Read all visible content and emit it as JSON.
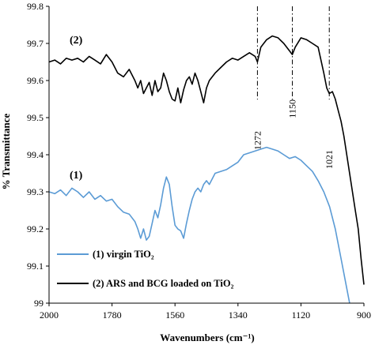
{
  "chart_data": {
    "type": "line",
    "xlabel": "Wavenumbers (cm⁻¹)",
    "ylabel": "% Transmittance",
    "xlim": [
      2000,
      900
    ],
    "ylim": [
      99,
      99.8
    ],
    "x_reversed": true,
    "xticks": [
      2000,
      1780,
      1560,
      1340,
      1120,
      900
    ],
    "xtick_labels": [
      "2000",
      "1780",
      "1560",
      "1340",
      "1120",
      "900"
    ],
    "yticks": [
      99,
      99.1,
      99.2,
      99.3,
      99.4,
      99.5,
      99.6,
      99.7,
      99.8
    ],
    "ytick_labels": [
      "99",
      "99.1",
      "99.2",
      "99.3",
      "99.4",
      "99.5",
      "99.6",
      "99.7",
      "99.8"
    ],
    "grid": false,
    "legend_position": "bottom-left",
    "series": [
      {
        "name": "(1) virgin TiO₂",
        "tag": "(1)",
        "color": "#5b9bd5",
        "x": [
          2000,
          1980,
          1960,
          1940,
          1920,
          1900,
          1880,
          1860,
          1840,
          1820,
          1800,
          1780,
          1760,
          1740,
          1720,
          1700,
          1690,
          1680,
          1670,
          1660,
          1650,
          1640,
          1630,
          1620,
          1610,
          1600,
          1590,
          1580,
          1570,
          1560,
          1550,
          1540,
          1530,
          1520,
          1510,
          1500,
          1490,
          1480,
          1470,
          1460,
          1450,
          1440,
          1420,
          1400,
          1380,
          1360,
          1340,
          1320,
          1300,
          1280,
          1260,
          1240,
          1220,
          1200,
          1180,
          1160,
          1140,
          1120,
          1100,
          1080,
          1060,
          1040,
          1020,
          1000,
          980,
          960,
          950
        ],
        "y": [
          99.3,
          99.295,
          99.305,
          99.29,
          99.31,
          99.3,
          99.285,
          99.3,
          99.28,
          99.29,
          99.275,
          99.28,
          99.26,
          99.245,
          99.24,
          99.22,
          99.2,
          99.175,
          99.2,
          99.17,
          99.18,
          99.215,
          99.25,
          99.23,
          99.265,
          99.31,
          99.34,
          99.32,
          99.26,
          99.21,
          99.2,
          99.195,
          99.175,
          99.215,
          99.25,
          99.28,
          99.3,
          99.31,
          99.3,
          99.32,
          99.33,
          99.32,
          99.35,
          99.355,
          99.36,
          99.37,
          99.38,
          99.4,
          99.405,
          99.41,
          99.415,
          99.42,
          99.415,
          99.41,
          99.4,
          99.39,
          99.395,
          99.385,
          99.37,
          99.355,
          99.33,
          99.3,
          99.26,
          99.2,
          99.12,
          99.04,
          99.0
        ]
      },
      {
        "name": "(2) ARS and BCG loaded on TiO₂",
        "tag": "(2)",
        "color": "#000000",
        "x": [
          2000,
          1980,
          1960,
          1940,
          1920,
          1900,
          1880,
          1860,
          1840,
          1820,
          1800,
          1780,
          1760,
          1740,
          1720,
          1700,
          1690,
          1680,
          1670,
          1660,
          1650,
          1640,
          1630,
          1620,
          1610,
          1600,
          1590,
          1580,
          1570,
          1560,
          1550,
          1540,
          1530,
          1520,
          1510,
          1500,
          1490,
          1480,
          1470,
          1460,
          1450,
          1440,
          1420,
          1400,
          1380,
          1360,
          1340,
          1320,
          1300,
          1280,
          1272,
          1260,
          1240,
          1220,
          1200,
          1180,
          1160,
          1150,
          1140,
          1120,
          1100,
          1080,
          1060,
          1040,
          1030,
          1021,
          1010,
          1000,
          990,
          980,
          970,
          960,
          950,
          940,
          930,
          920,
          910,
          900
        ],
        "y": [
          99.65,
          99.655,
          99.645,
          99.66,
          99.655,
          99.66,
          99.65,
          99.665,
          99.655,
          99.645,
          99.67,
          99.65,
          99.62,
          99.61,
          99.63,
          99.6,
          99.58,
          99.6,
          99.565,
          99.58,
          99.595,
          99.56,
          99.6,
          99.57,
          99.58,
          99.62,
          99.6,
          99.57,
          99.55,
          99.545,
          99.58,
          99.54,
          99.575,
          99.6,
          99.61,
          99.59,
          99.62,
          99.6,
          99.57,
          99.54,
          99.58,
          99.6,
          99.62,
          99.635,
          99.65,
          99.66,
          99.655,
          99.665,
          99.675,
          99.665,
          99.65,
          99.69,
          99.71,
          99.72,
          99.715,
          99.7,
          99.68,
          99.67,
          99.69,
          99.715,
          99.71,
          99.7,
          99.69,
          99.62,
          99.58,
          99.565,
          99.57,
          99.55,
          99.52,
          99.49,
          99.45,
          99.4,
          99.35,
          99.3,
          99.25,
          99.2,
          99.12,
          99.05
        ]
      }
    ],
    "annotations": [
      {
        "x": 1272,
        "label": "1272"
      },
      {
        "x": 1150,
        "label": "1150"
      },
      {
        "x": 1021,
        "label": "1021"
      }
    ]
  }
}
